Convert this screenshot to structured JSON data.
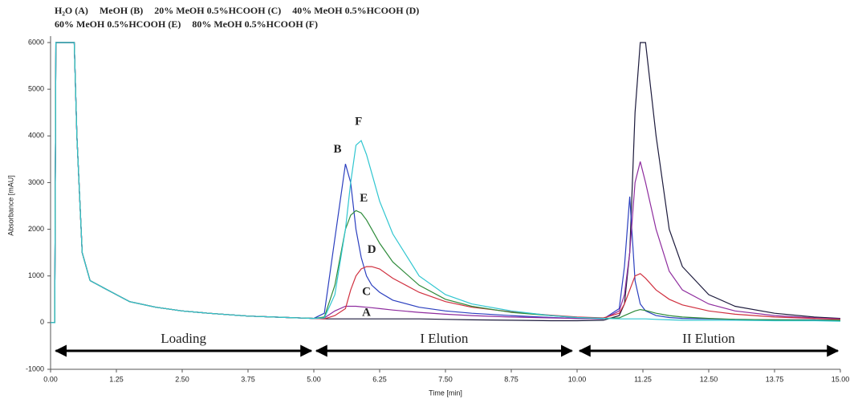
{
  "chart_data": {
    "type": "line",
    "x_label": "Time [min]",
    "y_label": "Absorbance [mAU]",
    "x": [
      0,
      0.08,
      0.1,
      0.15,
      0.45,
      0.5,
      0.6,
      0.75,
      1.0,
      1.25,
      1.5,
      2.0,
      2.5,
      3.0,
      3.75,
      4.5,
      5.0,
      5.2,
      5.4,
      5.6,
      5.7,
      5.8,
      5.9,
      6.0,
      6.1,
      6.25,
      6.5,
      7.0,
      7.5,
      8.0,
      8.75,
      9.5,
      10.0,
      10.5,
      10.8,
      10.9,
      11.0,
      11.1,
      11.2,
      11.3,
      11.5,
      11.75,
      12.0,
      12.5,
      13.0,
      13.75,
      14.5,
      15.0
    ],
    "series": [
      {
        "name": "H₂O (A)",
        "color": "#1c1a3c",
        "values": [
          0,
          0,
          6000,
          6000,
          6000,
          4000,
          1500,
          900,
          750,
          600,
          450,
          330,
          250,
          200,
          140,
          110,
          90,
          80,
          80,
          80,
          80,
          80,
          80,
          80,
          80,
          80,
          80,
          80,
          70,
          60,
          50,
          40,
          40,
          50,
          150,
          400,
          1500,
          4500,
          6000,
          6000,
          4000,
          2000,
          1200,
          600,
          350,
          200,
          120,
          90
        ]
      },
      {
        "name": "MeOH (B)",
        "color": "#2b3fbf",
        "values": [
          0,
          0,
          6000,
          6000,
          6000,
          4000,
          1500,
          900,
          750,
          600,
          450,
          330,
          250,
          200,
          140,
          110,
          90,
          200,
          1800,
          3400,
          3000,
          2000,
          1400,
          1000,
          800,
          650,
          480,
          330,
          250,
          200,
          150,
          110,
          90,
          80,
          300,
          1200,
          2700,
          900,
          400,
          250,
          150,
          110,
          90,
          80,
          70,
          60,
          60,
          50
        ]
      },
      {
        "name": "20% MeOH 0.5%HCOOH (C)",
        "color": "#8e2c9e",
        "values": [
          0,
          0,
          6000,
          6000,
          6000,
          4000,
          1500,
          900,
          750,
          600,
          450,
          330,
          250,
          200,
          140,
          110,
          90,
          100,
          250,
          350,
          350,
          350,
          340,
          330,
          320,
          300,
          270,
          220,
          180,
          150,
          120,
          100,
          90,
          80,
          250,
          600,
          1500,
          3000,
          3450,
          3000,
          2000,
          1100,
          700,
          400,
          250,
          150,
          100,
          80
        ]
      },
      {
        "name": "40% MeOH 0.5%HCOOH (D)",
        "color": "#d0303f",
        "values": [
          0,
          0,
          6000,
          6000,
          6000,
          4000,
          1500,
          900,
          750,
          600,
          450,
          330,
          250,
          200,
          140,
          110,
          90,
          80,
          150,
          300,
          700,
          1000,
          1150,
          1200,
          1200,
          1150,
          950,
          650,
          450,
          330,
          230,
          160,
          120,
          100,
          200,
          400,
          700,
          1000,
          1050,
          950,
          700,
          500,
          380,
          250,
          180,
          120,
          90,
          70
        ]
      },
      {
        "name": "60% MeOH 0.5%HCOOH (E)",
        "color": "#2e8b3a",
        "values": [
          0,
          0,
          6000,
          6000,
          6000,
          4000,
          1500,
          900,
          750,
          600,
          450,
          330,
          250,
          200,
          140,
          110,
          90,
          120,
          800,
          2000,
          2300,
          2400,
          2350,
          2200,
          2000,
          1700,
          1300,
          800,
          500,
          350,
          220,
          150,
          110,
          90,
          100,
          150,
          200,
          250,
          280,
          260,
          200,
          150,
          120,
          90,
          70,
          60,
          50,
          50
        ]
      },
      {
        "name": "80% MeOH 0.5%HCOOH (F)",
        "color": "#30c6d0",
        "values": [
          0,
          0,
          6000,
          6000,
          6000,
          4000,
          1500,
          900,
          750,
          600,
          450,
          330,
          250,
          200,
          140,
          110,
          90,
          100,
          600,
          2000,
          3000,
          3800,
          3900,
          3600,
          3200,
          2600,
          1900,
          1000,
          600,
          400,
          250,
          150,
          110,
          90,
          80,
          80,
          80,
          80,
          80,
          80,
          70,
          60,
          50,
          50,
          50,
          40,
          40,
          30
        ]
      }
    ],
    "xlim": [
      0,
      15
    ],
    "xticks": [
      {
        "value": 0,
        "label": "0.00"
      },
      1.25,
      {
        "value": 2.5,
        "label": "2.50"
      },
      3.75,
      {
        "value": 5,
        "label": "5.00"
      },
      6.25,
      {
        "value": 7.5,
        "label": "7.50"
      },
      8.75,
      {
        "value": 10,
        "label": "10.00"
      },
      11.25,
      {
        "value": 12.5,
        "label": "12.50"
      },
      13.75,
      {
        "value": 15,
        "label": "15.00"
      }
    ],
    "ylim": [
      -1000,
      6000
    ],
    "yticks": [
      -1000,
      0,
      1000,
      2000,
      3000,
      4000,
      5000,
      6000
    ],
    "annotations": [
      {
        "text": "A",
        "x": 6.0,
        "y": 200,
        "color": "#1c1a3c"
      },
      {
        "text": "B",
        "x": 5.45,
        "y": 3700,
        "color": "#2b3fbf"
      },
      {
        "text": "C",
        "x": 6.0,
        "y": 650,
        "color": "#8e2c9e"
      },
      {
        "text": "D",
        "x": 6.1,
        "y": 1550,
        "color": "#d0303f"
      },
      {
        "text": "E",
        "x": 5.95,
        "y": 2650,
        "color": "#2e8b3a"
      },
      {
        "text": "F",
        "x": 5.85,
        "y": 4300,
        "color": "#30c6d0"
      }
    ],
    "regions": [
      {
        "label": "Loading",
        "from": 0.1,
        "to": 4.95
      },
      {
        "label": "I Elution",
        "from": 5.05,
        "to": 9.9
      },
      {
        "label": "II Elution",
        "from": 10.05,
        "to": 14.95
      }
    ]
  }
}
